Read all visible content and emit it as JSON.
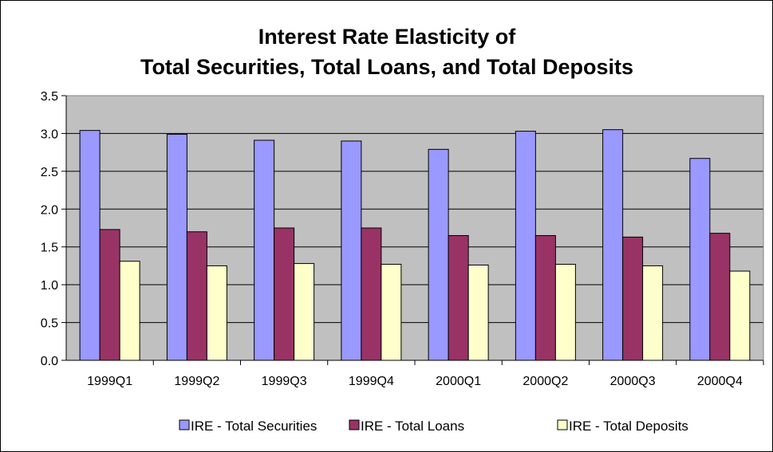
{
  "chart_data": {
    "type": "bar",
    "title_lines": [
      "Interest Rate Elasticity of",
      "Total Securities, Total Loans, and Total Deposits"
    ],
    "xlabel": "",
    "ylabel": "",
    "categories": [
      "1999Q1",
      "1999Q2",
      "1999Q3",
      "1999Q4",
      "2000Q1",
      "2000Q2",
      "2000Q3",
      "2000Q4"
    ],
    "y_ticks": [
      "0.0",
      "0.5",
      "1.0",
      "1.5",
      "2.0",
      "2.5",
      "3.0",
      "3.5"
    ],
    "ylim": [
      0,
      3.5
    ],
    "grid": true,
    "plot_background": "#c0c0c0",
    "legend_position": "bottom",
    "series": [
      {
        "name": "IRE - Total Securities",
        "color": "#9999ff",
        "values": [
          3.04,
          2.99,
          2.91,
          2.9,
          2.79,
          3.03,
          3.05,
          2.67
        ]
      },
      {
        "name": "IRE - Total Loans",
        "color": "#993366",
        "values": [
          1.73,
          1.7,
          1.75,
          1.75,
          1.65,
          1.65,
          1.63,
          1.68
        ]
      },
      {
        "name": "IRE - Total Deposits",
        "color": "#ffffcc",
        "values": [
          1.31,
          1.25,
          1.28,
          1.27,
          1.26,
          1.27,
          1.25,
          1.18
        ]
      }
    ]
  }
}
